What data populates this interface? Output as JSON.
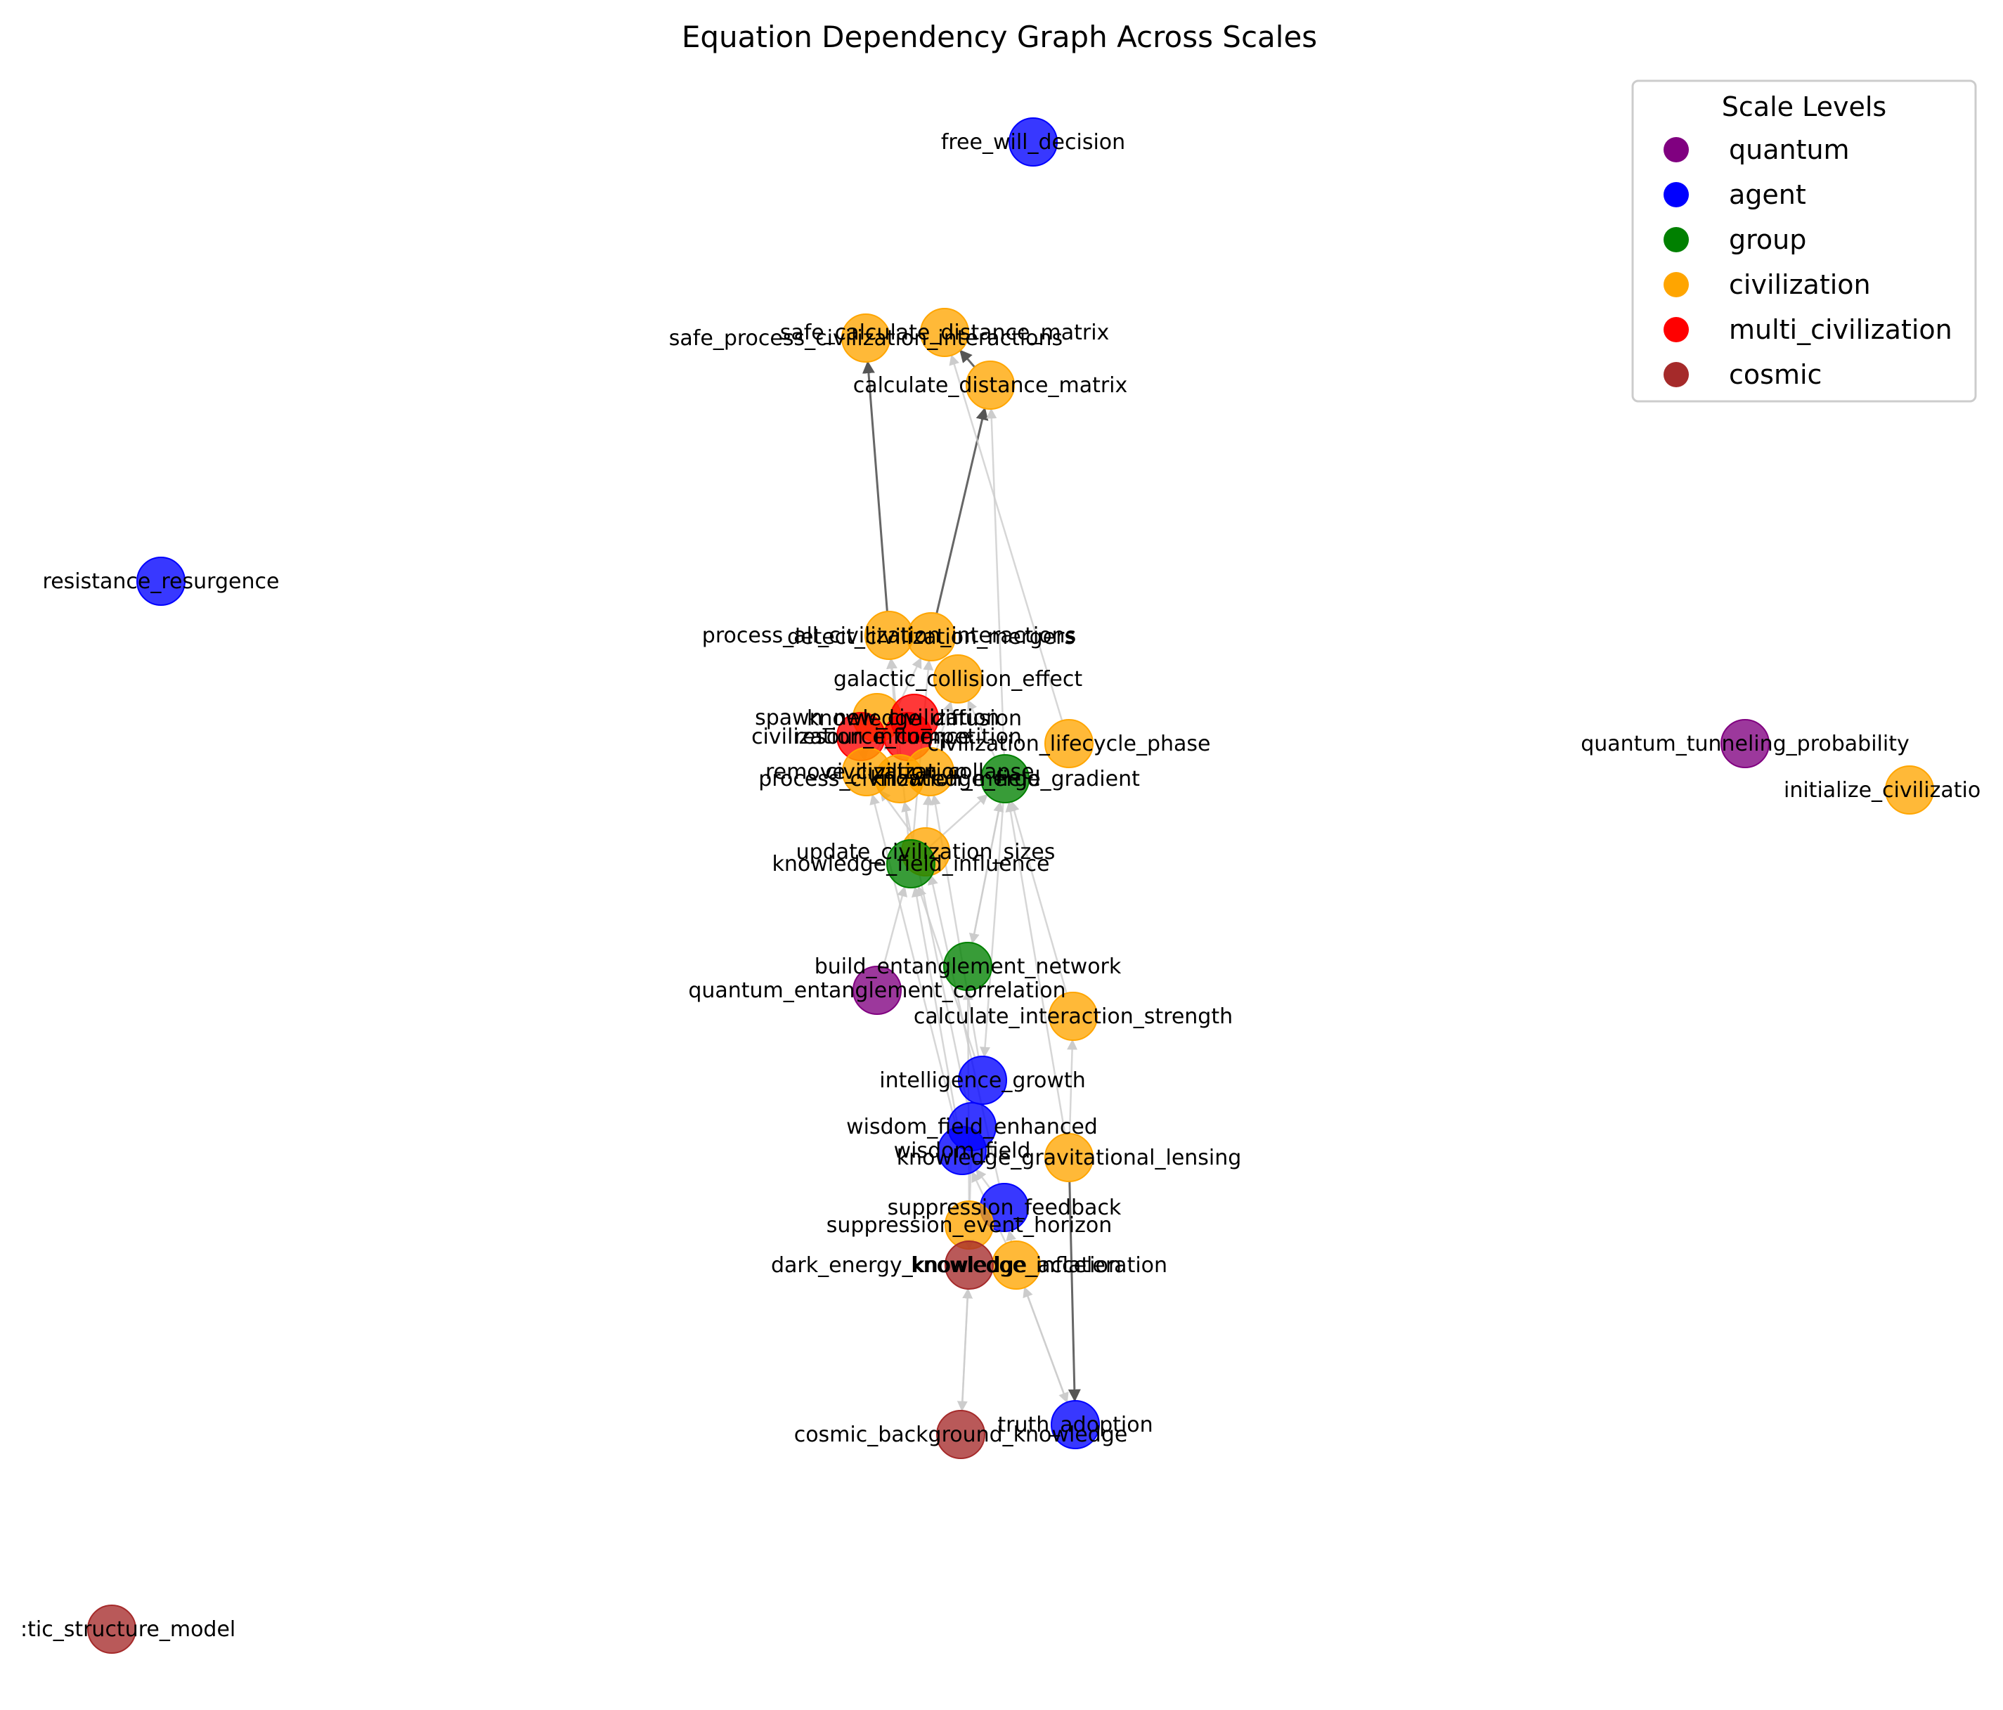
{
  "title": "Equation Dependency Graph Across Scales",
  "legend": {
    "title": "Scale Levels",
    "placement": "top-right",
    "items": [
      {
        "label": "quantum",
        "color": "#800080"
      },
      {
        "label": "agent",
        "color": "#0000ff"
      },
      {
        "label": "group",
        "color": "#008000"
      },
      {
        "label": "civilization",
        "color": "#ffa500"
      },
      {
        "label": "multi_civilization",
        "color": "#ff0000"
      },
      {
        "label": "cosmic",
        "color": "#a52a2a"
      }
    ]
  },
  "nodes": [
    {
      "id": "free_will_decision",
      "label": "free_will_decision",
      "scale": "agent"
    },
    {
      "id": "safe_process_civilization_interactions",
      "label": "safe_process_civilization_interactions",
      "scale": "civilization"
    },
    {
      "id": "safe_calculate_distance_matrix",
      "label": "safe_calculate_distance_matrix",
      "scale": "civilization"
    },
    {
      "id": "calculate_distance_matrix",
      "label": "calculate_distance_matrix",
      "scale": "civilization"
    },
    {
      "id": "resistance_resurgence",
      "label": "resistance_resurgence",
      "scale": "agent"
    },
    {
      "id": "process_all_civilization_interactions",
      "label": "process_all_civilization_interactions",
      "scale": "civilization"
    },
    {
      "id": "detect_civilization_mergers",
      "label": "detect_civilization_mergers",
      "scale": "civilization"
    },
    {
      "id": "galactic_collision_effect",
      "label": "galactic_collision_effect",
      "scale": "civilization"
    },
    {
      "id": "spawn_new_civilization",
      "label": "spawn_new_civilization",
      "scale": "civilization"
    },
    {
      "id": "knowledge_diffusion",
      "label": "knowledge_diffusion",
      "scale": "multi_civilization"
    },
    {
      "id": "civilization_influence",
      "label": "civilization_influence",
      "scale": "multi_civilization"
    },
    {
      "id": "resource_competition",
      "label": "resource_competition",
      "scale": "multi_civilization"
    },
    {
      "id": "civilization_lifecycle_phase",
      "label": "civilization_lifecycle_phase",
      "scale": "civilization"
    },
    {
      "id": "remove_civilization",
      "label": "remove_civilization",
      "scale": "civilization"
    },
    {
      "id": "civilization_collapse",
      "label": "civilization_collapse",
      "scale": "civilization"
    },
    {
      "id": "process_civilization_merge",
      "label": "process_civilization_merge",
      "scale": "civilization"
    },
    {
      "id": "knowledge_field_gradient",
      "label": "knowledge_field_gradient",
      "scale": "group"
    },
    {
      "id": "quantum_tunneling_probability",
      "label": "quantum_tunneling_probability",
      "scale": "quantum"
    },
    {
      "id": "initialize_civilizations",
      "label": "initialize_civilizatio",
      "scale": "civilization"
    },
    {
      "id": "update_civilization_sizes",
      "label": "update_civilization_sizes",
      "scale": "civilization"
    },
    {
      "id": "knowledge_field_influence",
      "label": "knowledge_field_influence",
      "scale": "group"
    },
    {
      "id": "build_entanglement_network",
      "label": "build_entanglement_network",
      "scale": "group"
    },
    {
      "id": "quantum_entanglement_correlation",
      "label": "quantum_entanglement_correlation",
      "scale": "quantum"
    },
    {
      "id": "calculate_interaction_strength",
      "label": "calculate_interaction_strength",
      "scale": "civilization"
    },
    {
      "id": "intelligence_growth",
      "label": "intelligence_growth",
      "scale": "agent"
    },
    {
      "id": "wisdom_field_enhanced",
      "label": "wisdom_field_enhanced",
      "scale": "agent"
    },
    {
      "id": "wisdom_field",
      "label": "wisdom_field",
      "scale": "agent"
    },
    {
      "id": "knowledge_gravitational_lensing",
      "label": "knowledge_gravitational_lensing",
      "scale": "civilization"
    },
    {
      "id": "suppression_feedback",
      "label": "suppression_feedback",
      "scale": "agent"
    },
    {
      "id": "suppression_event_horizon",
      "label": "suppression_event_horizon",
      "scale": "civilization"
    },
    {
      "id": "knowledge_inflation",
      "label": "knowledge_inflation",
      "scale": "civilization"
    },
    {
      "id": "dark_energy_knowledge_acceleration",
      "label": "dark_energy_knowledge_acceleration",
      "scale": "cosmic"
    },
    {
      "id": "truth_adoption",
      "label": "truth_adoption",
      "scale": "agent"
    },
    {
      "id": "cosmic_background_knowledge",
      "label": "cosmic_background_knowledge",
      "scale": "cosmic"
    },
    {
      "id": "galactic_structure_model",
      "label": ":tic_structure_model",
      "scale": "cosmic"
    }
  ],
  "edges": [
    {
      "from": "process_all_civilization_interactions",
      "to": "safe_process_civilization_interactions",
      "style": "dark"
    },
    {
      "from": "detect_civilization_mergers",
      "to": "calculate_distance_matrix",
      "style": "dark"
    },
    {
      "from": "calculate_distance_matrix",
      "to": "safe_calculate_distance_matrix",
      "style": "dark"
    },
    {
      "from": "knowledge_gravitational_lensing",
      "to": "truth_adoption",
      "style": "dark"
    },
    {
      "from": "civilization_lifecycle_phase",
      "to": "safe_calculate_distance_matrix",
      "style": "light"
    },
    {
      "from": "knowledge_field_gradient",
      "to": "calculate_distance_matrix",
      "style": "light"
    },
    {
      "from": "knowledge_field_influence",
      "to": "process_all_civilization_interactions",
      "style": "light"
    },
    {
      "from": "knowledge_field_influence",
      "to": "detect_civilization_mergers",
      "style": "light"
    },
    {
      "from": "update_civilization_sizes",
      "to": "remove_civilization",
      "style": "light"
    },
    {
      "from": "update_civilization_sizes",
      "to": "civilization_collapse",
      "style": "light"
    },
    {
      "from": "knowledge_field_influence",
      "to": "knowledge_field_gradient",
      "style": "light"
    },
    {
      "from": "build_entanglement_network",
      "to": "knowledge_field_gradient",
      "style": "light"
    },
    {
      "from": "knowledge_field_gradient",
      "to": "build_entanglement_network",
      "style": "light"
    },
    {
      "from": "quantum_entanglement_correlation",
      "to": "knowledge_field_influence",
      "style": "light"
    },
    {
      "from": "calculate_interaction_strength",
      "to": "knowledge_field_gradient",
      "style": "light"
    },
    {
      "from": "intelligence_growth",
      "to": "knowledge_field_influence",
      "style": "light"
    },
    {
      "from": "intelligence_growth",
      "to": "civilization_collapse",
      "style": "light"
    },
    {
      "from": "knowledge_field_gradient",
      "to": "intelligence_growth",
      "style": "light"
    },
    {
      "from": "wisdom_field_enhanced",
      "to": "process_civilization_merge",
      "style": "light"
    },
    {
      "from": "wisdom_field",
      "to": "knowledge_field_influence",
      "style": "light"
    },
    {
      "from": "wisdom_field",
      "to": "remove_civilization",
      "style": "light"
    },
    {
      "from": "knowledge_gravitational_lensing",
      "to": "calculate_interaction_strength",
      "style": "light"
    },
    {
      "from": "knowledge_gravitational_lensing",
      "to": "knowledge_field_gradient",
      "style": "light"
    },
    {
      "from": "suppression_feedback",
      "to": "wisdom_field",
      "style": "light"
    },
    {
      "from": "suppression_feedback",
      "to": "update_civilization_sizes",
      "style": "light"
    },
    {
      "from": "suppression_event_horizon",
      "to": "wisdom_field_enhanced",
      "style": "light"
    },
    {
      "from": "suppression_event_horizon",
      "to": "build_entanglement_network",
      "style": "light"
    },
    {
      "from": "knowledge_inflation",
      "to": "wisdom_field",
      "style": "light"
    },
    {
      "from": "knowledge_inflation",
      "to": "suppression_feedback",
      "style": "light"
    },
    {
      "from": "dark_energy_knowledge_acceleration",
      "to": "suppression_event_horizon",
      "style": "light"
    },
    {
      "from": "dark_energy_knowledge_acceleration",
      "to": "cosmic_background_knowledge",
      "style": "light"
    },
    {
      "from": "cosmic_background_knowledge",
      "to": "dark_energy_knowledge_acceleration",
      "style": "light"
    },
    {
      "from": "truth_adoption",
      "to": "knowledge_inflation",
      "style": "light"
    },
    {
      "from": "knowledge_inflation",
      "to": "truth_adoption",
      "style": "light"
    },
    {
      "from": "process_civilization_merge",
      "to": "process_all_civilization_interactions",
      "style": "light"
    },
    {
      "from": "remove_civilization",
      "to": "detect_civilization_mergers",
      "style": "light"
    },
    {
      "from": "civilization_collapse",
      "to": "galactic_collision_effect",
      "style": "light"
    },
    {
      "from": "knowledge_field_gradient",
      "to": "galactic_collision_effect",
      "style": "light"
    },
    {
      "from": "process_civilization_merge",
      "to": "spawn_new_civilization",
      "style": "light"
    },
    {
      "from": "remove_civilization",
      "to": "civilization_influence",
      "style": "light"
    }
  ]
}
